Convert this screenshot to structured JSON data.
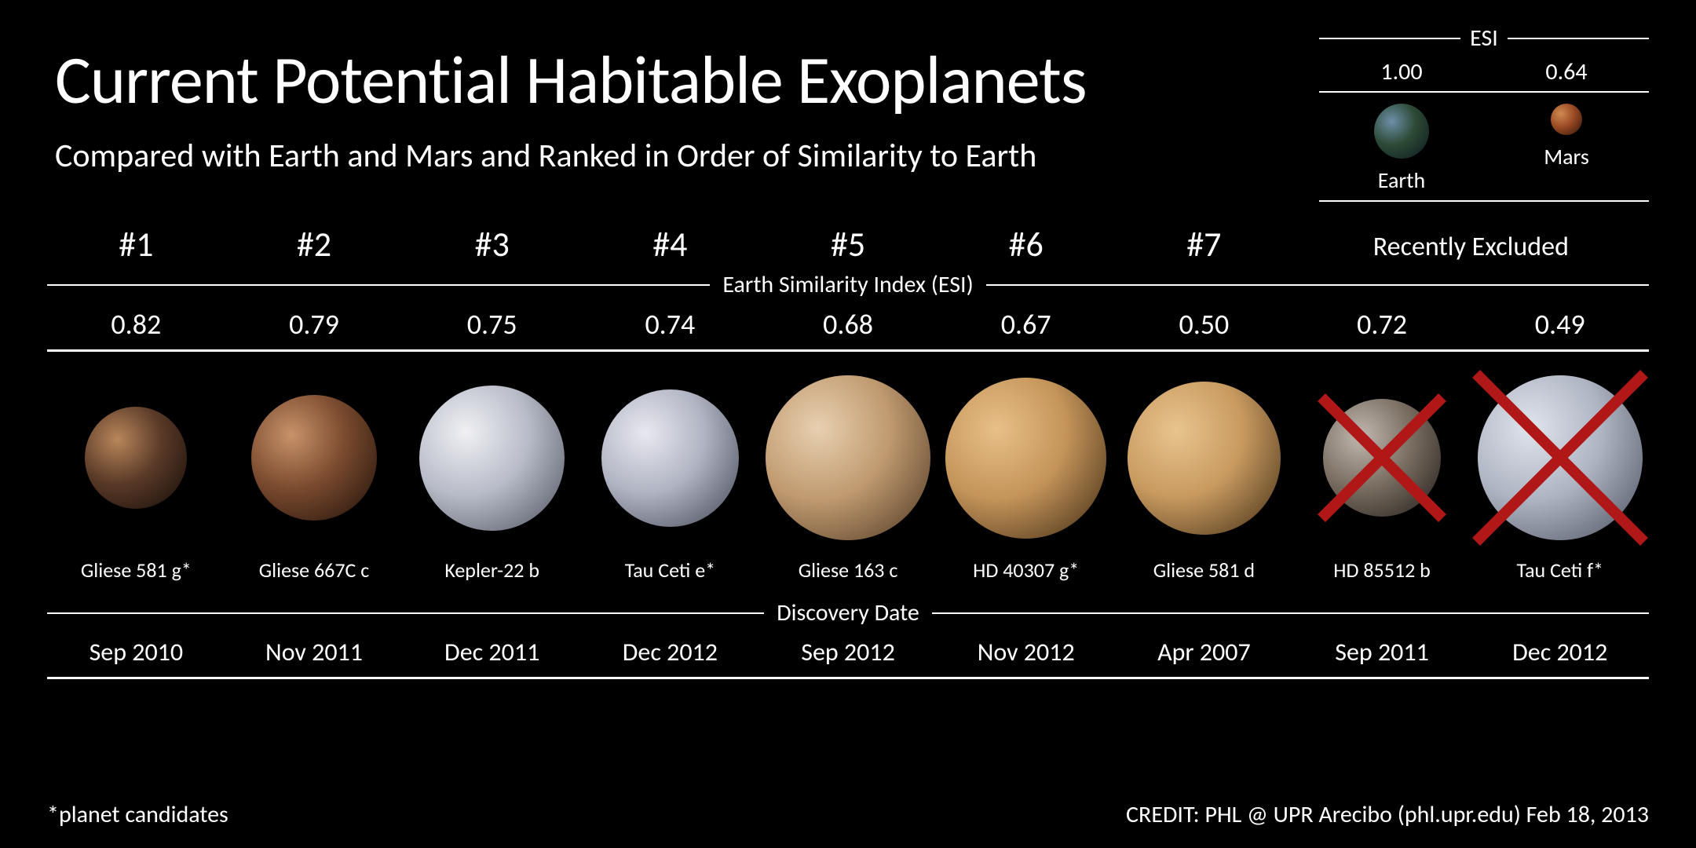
{
  "title": "Current Potential Habitable Exoplanets",
  "subtitle": "Compared with Earth and Mars and Ranked in Order of Similarity to Earth",
  "esi_section_label": "Earth Similarity Index (ESI)",
  "discovery_section_label": "Discovery Date",
  "excluded_header": "Recently Excluded",
  "footer_left": "*planet candidates",
  "footer_right": "CREDIT: PHL @ UPR Arecibo (phl.upr.edu) Feb 18, 2013",
  "reference": {
    "label": "ESI",
    "items": [
      {
        "name": "Earth",
        "esi": "1.00",
        "diameter": 70,
        "gradient": [
          "#6d8fa8",
          "#2d4a36",
          "#0a1820"
        ]
      },
      {
        "name": "Mars",
        "esi": "0.64",
        "diameter": 40,
        "gradient": [
          "#d08a52",
          "#9a4a24",
          "#2a1208"
        ]
      }
    ]
  },
  "planets": [
    {
      "rank": "#1",
      "esi": "0.82",
      "name": "Gliese 581 g*",
      "date": "Sep 2010",
      "diameter": 130,
      "gradient": [
        "#b8865a",
        "#5a3a28",
        "#120a06"
      ],
      "excluded": false
    },
    {
      "rank": "#2",
      "esi": "0.79",
      "name": "Gliese 667C c",
      "date": "Nov 2011",
      "diameter": 160,
      "gradient": [
        "#c8926a",
        "#7a4a2e",
        "#1a0e08"
      ],
      "excluded": false
    },
    {
      "rank": "#3",
      "esi": "0.75",
      "name": "Kepler-22 b",
      "date": "Dec 2011",
      "diameter": 185,
      "gradient": [
        "#f0f0f4",
        "#b8bcc8",
        "#4a4e5a"
      ],
      "excluded": false
    },
    {
      "rank": "#4",
      "esi": "0.74",
      "name": "Tau Ceti e*",
      "date": "Dec 2012",
      "diameter": 175,
      "gradient": [
        "#e8e8f0",
        "#b0b4c2",
        "#3e4250"
      ],
      "excluded": false
    },
    {
      "rank": "#5",
      "esi": "0.68",
      "name": "Gliese 163 c",
      "date": "Sep 2012",
      "diameter": 210,
      "gradient": [
        "#e8d0b0",
        "#c09a70",
        "#4a3420"
      ],
      "excluded": false
    },
    {
      "rank": "#6",
      "esi": "0.67",
      "name": "HD 40307 g*",
      "date": "Nov 2012",
      "diameter": 205,
      "gradient": [
        "#e8c088",
        "#c4945a",
        "#3a2610"
      ],
      "excluded": false
    },
    {
      "rank": "#7",
      "esi": "0.50",
      "name": "Gliese 581 d",
      "date": "Apr 2007",
      "diameter": 195,
      "gradient": [
        "#e8c48e",
        "#c89a60",
        "#3e2a12"
      ],
      "excluded": false
    },
    {
      "rank": "",
      "esi": "0.72",
      "name": "HD 85512 b",
      "date": "Sep 2011",
      "diameter": 150,
      "gradient": [
        "#c0b8b0",
        "#7a6e62",
        "#1e1a16"
      ],
      "excluded": true
    },
    {
      "rank": "",
      "esi": "0.49",
      "name": "Tau Ceti f*",
      "date": "Dec 2012",
      "diameter": 210,
      "gradient": [
        "#e0e4ec",
        "#aeb4c2",
        "#464c58"
      ],
      "excluded": true
    }
  ],
  "style": {
    "background": "#000000",
    "text_color": "#ffffff",
    "rule_color": "#ffffff",
    "cross_color": "#b01818",
    "title_fontsize": 86,
    "subtitle_fontsize": 42,
    "rank_fontsize": 44,
    "esi_fontsize": 36,
    "name_fontsize": 26,
    "date_fontsize": 32,
    "footer_fontsize": 30
  }
}
